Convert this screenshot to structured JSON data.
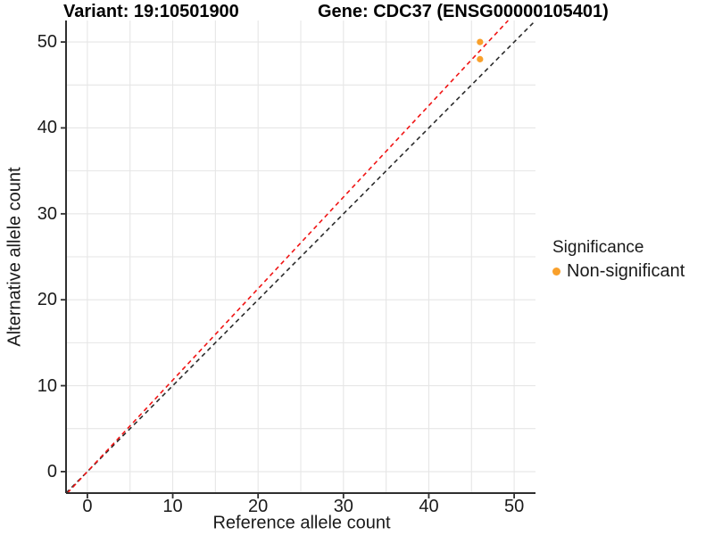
{
  "header": {
    "variant_title": "Variant: 19:10501900",
    "gene_title": "Gene: CDC37 (ENSG00000105401)"
  },
  "axes": {
    "x": {
      "label": "Reference allele count",
      "ticks": [
        0,
        10,
        20,
        30,
        40,
        50
      ]
    },
    "y": {
      "label": "Alternative allele count",
      "ticks": [
        0,
        10,
        20,
        30,
        40,
        50
      ]
    }
  },
  "legend": {
    "title": "Significance",
    "items": [
      {
        "label": "Non-significant",
        "color": "#F9A02B"
      }
    ]
  },
  "colors": {
    "background": "#ffffff",
    "gridline": "#e6e6e6",
    "axis_line": "#2f2f2f",
    "identity_line": "#2b2b2b",
    "fit_line": "#F01414",
    "point": "#F9A02B",
    "text": "#1a1a1a"
  },
  "chart_data": {
    "type": "scatter",
    "title": "Variant: 19:10501900 / Gene: CDC37 (ENSG00000105401)",
    "xlabel": "Reference allele count",
    "ylabel": "Alternative allele count",
    "xlim": [
      -2.5,
      52.5
    ],
    "ylim": [
      -2.5,
      52.5
    ],
    "x_ticks": [
      0,
      10,
      20,
      30,
      40,
      50
    ],
    "y_ticks": [
      0,
      10,
      20,
      30,
      40,
      50
    ],
    "grid": "on",
    "grid_step": 5,
    "legend_position": "right",
    "series": [
      {
        "name": "Non-significant",
        "type": "scatter",
        "color": "#F9A02B",
        "points": [
          {
            "x": 46,
            "y": 50
          },
          {
            "x": 46,
            "y": 48
          }
        ]
      }
    ],
    "lines": [
      {
        "name": "identity",
        "slope": 1.0,
        "intercept": 0,
        "style": "dashed",
        "color": "#2b2b2b"
      },
      {
        "name": "fit",
        "slope": 1.065,
        "intercept": 0,
        "style": "dashed",
        "color": "#F01414"
      }
    ]
  }
}
